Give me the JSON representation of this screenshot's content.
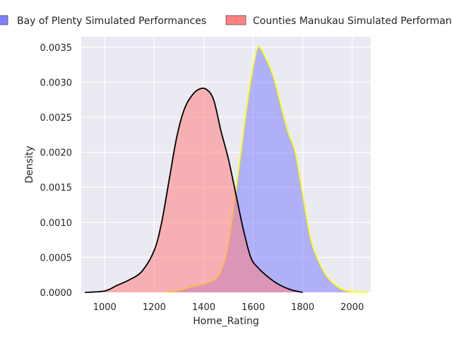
{
  "chart_data": {
    "type": "area",
    "title": "",
    "xlabel": "Home_Rating",
    "ylabel": "Density",
    "xlim": [
      905,
      2075
    ],
    "ylim": [
      0,
      0.00365
    ],
    "x_ticks": [
      1000,
      1200,
      1400,
      1600,
      1800,
      2000
    ],
    "x_tick_labels": [
      "1000",
      "1200",
      "1400",
      "1600",
      "1800",
      "2000"
    ],
    "y_ticks": [
      0,
      0.0005,
      0.001,
      0.0015,
      0.002,
      0.0025,
      0.003,
      0.0035
    ],
    "y_tick_labels": [
      "0.0000",
      "0.0005",
      "0.0010",
      "0.0015",
      "0.0020",
      "0.0025",
      "0.0030",
      "0.0035"
    ],
    "grid": true,
    "legend_position": "top (above plot)",
    "series": [
      {
        "name": "Bay of Plenty Simulated Performances",
        "fill": "#8080ff",
        "edge": "#ffff00",
        "points": [
          [
            1250,
            0
          ],
          [
            1300,
            3e-05
          ],
          [
            1350,
            8e-05
          ],
          [
            1400,
            0.00012
          ],
          [
            1450,
            0.0002
          ],
          [
            1480,
            0.0004
          ],
          [
            1500,
            0.0007
          ],
          [
            1520,
            0.0012
          ],
          [
            1550,
            0.002
          ],
          [
            1580,
            0.0028
          ],
          [
            1610,
            0.0034
          ],
          [
            1625,
            0.0035
          ],
          [
            1650,
            0.00335
          ],
          [
            1680,
            0.0031
          ],
          [
            1710,
            0.0027
          ],
          [
            1740,
            0.0023
          ],
          [
            1770,
            0.002
          ],
          [
            1800,
            0.0014
          ],
          [
            1830,
            0.0008
          ],
          [
            1860,
            0.00048
          ],
          [
            1900,
            0.00022
          ],
          [
            1950,
            6e-05
          ],
          [
            2000,
            1e-05
          ],
          [
            2060,
            0
          ]
        ]
      },
      {
        "name": "Counties Manukau Simulated Performances",
        "fill": "#ff8080",
        "edge": "#000000",
        "points": [
          [
            920,
            0
          ],
          [
            1000,
            2e-05
          ],
          [
            1050,
            0.0001
          ],
          [
            1100,
            0.00018
          ],
          [
            1150,
            0.0003
          ],
          [
            1200,
            0.0006
          ],
          [
            1230,
            0.001
          ],
          [
            1260,
            0.0016
          ],
          [
            1290,
            0.0022
          ],
          [
            1320,
            0.0026
          ],
          [
            1350,
            0.0028
          ],
          [
            1380,
            0.0029
          ],
          [
            1410,
            0.0029
          ],
          [
            1440,
            0.00275
          ],
          [
            1470,
            0.0023
          ],
          [
            1500,
            0.0019
          ],
          [
            1530,
            0.0014
          ],
          [
            1560,
            0.0009
          ],
          [
            1590,
            0.0005
          ],
          [
            1620,
            0.00035
          ],
          [
            1660,
            0.00022
          ],
          [
            1700,
            0.00012
          ],
          [
            1750,
            4e-05
          ],
          [
            1800,
            0
          ]
        ]
      }
    ]
  }
}
